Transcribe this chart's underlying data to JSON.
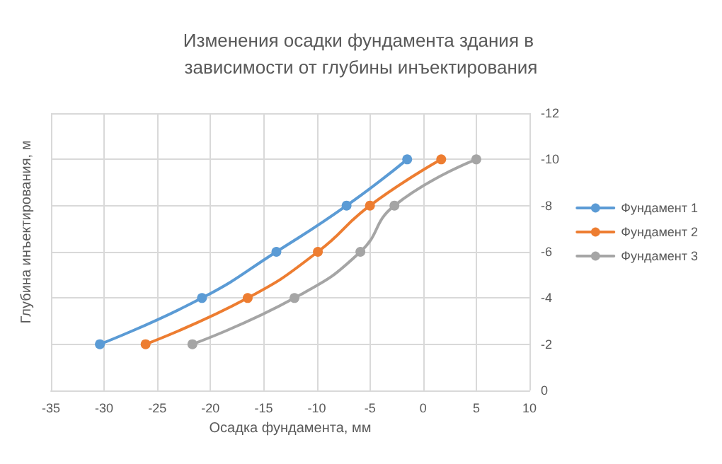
{
  "chart_data": {
    "type": "line",
    "title": "Изменения осадки фундамента здания в зависимости от глубины инъектирования",
    "xlabel": "Осадка фундамента, мм",
    "ylabel": "Глубина инъектирования, м",
    "series": [
      {
        "name": "Фундамент 1",
        "color": "#5b9bd5",
        "x": [
          -30.4,
          -20.8,
          -13.8,
          -7.2,
          -1.5
        ],
        "values": [
          -2,
          -4,
          -6,
          -8,
          -10
        ]
      },
      {
        "name": "Фундамент 2",
        "color": "#ed7d31",
        "x": [
          -26.1,
          -16.5,
          -9.9,
          -5.0,
          1.7
        ],
        "values": [
          -2,
          -4,
          -6,
          -8,
          -10
        ]
      },
      {
        "name": "Фундамент 3",
        "color": "#a5a5a5",
        "x": [
          -21.7,
          -12.1,
          -5.9,
          -2.7,
          5.0
        ],
        "values": [
          -2,
          -4,
          -6,
          -8,
          -10
        ]
      }
    ],
    "xlim": [
      -35,
      10
    ],
    "xticks": [
      -35,
      -30,
      -25,
      -20,
      -15,
      -10,
      -5,
      0,
      5,
      10
    ],
    "ylim": [
      0,
      -12
    ],
    "yticks": [
      0,
      -2,
      -4,
      -6,
      -8,
      -10,
      -12
    ],
    "grid": true,
    "legend": "right",
    "marker": "circle",
    "line_style": "solid"
  }
}
